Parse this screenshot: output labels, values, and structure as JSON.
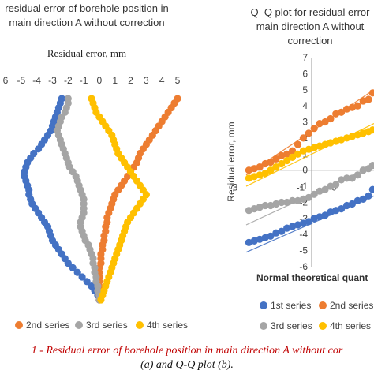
{
  "chart_data": [
    {
      "type": "scatter",
      "title": [
        "residual error of borehole position in",
        "main direction A without correction"
      ],
      "xlabel": "Residual error, mm",
      "ylabel": "",
      "x_ticks": [
        "6",
        "-5",
        "-4",
        "-3",
        "-2",
        "-1",
        "0",
        "1",
        "2",
        "3",
        "4",
        "5"
      ],
      "xlim": [
        -6,
        5
      ],
      "y_inverted": true,
      "grid": false,
      "legend": "bottom",
      "series": [
        {
          "name": "",
          "color": "#4472c4",
          "values": [
            -2.4,
            -2.5,
            -2.6,
            -2.7,
            -2.8,
            -2.9,
            -3.0,
            -3.1,
            -3.3,
            -3.5,
            -3.7,
            -3.9,
            -4.2,
            -4.4,
            -4.6,
            -4.7,
            -4.8,
            -4.8,
            -4.7,
            -4.6,
            -4.5,
            -4.5,
            -4.4,
            -4.3,
            -4.1,
            -3.9,
            -3.7,
            -3.5,
            -3.3,
            -3.2,
            -3.1,
            -3.0,
            -2.8,
            -2.6,
            -2.4,
            -2.2,
            -2.0,
            -1.7,
            -1.4,
            -1.1,
            -0.8,
            -0.5,
            -0.3,
            -0.1,
            0.0
          ]
        },
        {
          "name": "2nd series",
          "color": "#ed7d31",
          "values": [
            5.0,
            4.8,
            4.6,
            4.4,
            4.2,
            4.0,
            3.8,
            3.6,
            3.4,
            3.2,
            3.0,
            2.8,
            2.6,
            2.5,
            2.4,
            2.2,
            2.0,
            1.8,
            1.6,
            1.4,
            1.2,
            1.0,
            0.9,
            0.8,
            0.7,
            0.6,
            0.5,
            0.5,
            0.4,
            0.4,
            0.3,
            0.3,
            0.2,
            0.2,
            0.1,
            0.1,
            0.1,
            0.0,
            0.0,
            0.0,
            0.0,
            0.0,
            0.0,
            0.0,
            0.0
          ]
        },
        {
          "name": "3rd series",
          "color": "#a5a5a5",
          "values": [
            -2.0,
            -2.0,
            -2.1,
            -2.2,
            -2.4,
            -2.5,
            -2.6,
            -2.7,
            -2.6,
            -2.5,
            -2.4,
            -2.3,
            -2.2,
            -2.1,
            -2.0,
            -1.9,
            -1.7,
            -1.5,
            -1.4,
            -1.3,
            -1.2,
            -1.1,
            -1.0,
            -1.0,
            -1.0,
            -1.0,
            -1.1,
            -1.2,
            -1.2,
            -1.1,
            -1.0,
            -0.9,
            -0.7,
            -0.6,
            -0.5,
            -0.4,
            -0.4,
            -0.3,
            -0.3,
            -0.2,
            -0.2,
            -0.1,
            -0.1,
            0.0,
            0.0
          ]
        },
        {
          "name": "4th series",
          "color": "#ffc000",
          "values": [
            -0.5,
            -0.4,
            -0.3,
            -0.2,
            0.0,
            0.2,
            0.4,
            0.6,
            0.8,
            0.9,
            1.0,
            1.1,
            1.2,
            1.4,
            1.6,
            1.8,
            2.0,
            2.2,
            2.4,
            2.6,
            2.8,
            3.0,
            2.8,
            2.6,
            2.4,
            2.2,
            2.0,
            1.8,
            1.7,
            1.6,
            1.5,
            1.4,
            1.3,
            1.2,
            1.1,
            1.0,
            0.9,
            0.8,
            0.7,
            0.6,
            0.5,
            0.4,
            0.3,
            0.2,
            0.1
          ]
        }
      ]
    },
    {
      "type": "scatter",
      "title": [
        "Q–Q plot for residual error",
        "main direction A without",
        "correction"
      ],
      "xlabel": "Normal theoretical quant",
      "ylabel": "Residual error, mm",
      "y_ticks": [
        "7",
        "6",
        "5",
        "4",
        "3",
        "2",
        "1",
        "0",
        "-1",
        "-2",
        "-3",
        "-4",
        "-5",
        "-6"
      ],
      "x_tick_labels": [
        "3",
        "-1",
        "0"
      ],
      "ylim": [
        -6,
        7
      ],
      "xlim": [
        -3,
        1.7
      ],
      "grid": false,
      "legend": "bottom",
      "series": [
        {
          "name": "1st series",
          "color": "#4472c4",
          "x": [
            -2.9,
            -2.7,
            -2.5,
            -2.3,
            -2.1,
            -1.9,
            -1.7,
            -1.5,
            -1.3,
            -1.1,
            -0.9,
            -0.7,
            -0.5,
            -0.3,
            -0.1,
            0.1,
            0.3,
            0.5,
            0.7,
            0.9,
            1.1,
            1.3,
            1.5,
            1.65
          ],
          "y": [
            -4.5,
            -4.4,
            -4.3,
            -4.2,
            -4.1,
            -3.9,
            -3.8,
            -3.6,
            -3.5,
            -3.4,
            -3.3,
            -3.2,
            -3.0,
            -2.9,
            -2.8,
            -2.6,
            -2.5,
            -2.4,
            -2.2,
            -2.1,
            -1.9,
            -1.8,
            -1.6,
            -1.2
          ]
        },
        {
          "name": "2nd series",
          "color": "#ed7d31",
          "x": [
            -2.9,
            -2.7,
            -2.5,
            -2.3,
            -2.1,
            -1.9,
            -1.7,
            -1.5,
            -1.3,
            -1.1,
            -0.9,
            -0.7,
            -0.5,
            -0.3,
            -0.1,
            0.1,
            0.3,
            0.5,
            0.7,
            0.9,
            1.1,
            1.3,
            1.5,
            1.65
          ],
          "y": [
            0.0,
            0.1,
            0.2,
            0.4,
            0.5,
            0.7,
            0.9,
            1.0,
            1.2,
            1.6,
            2.0,
            2.3,
            2.6,
            2.9,
            3.0,
            3.2,
            3.5,
            3.6,
            3.8,
            3.9,
            4.0,
            4.3,
            4.4,
            4.8
          ]
        },
        {
          "name": "3rd series",
          "color": "#a5a5a5",
          "x": [
            -2.9,
            -2.7,
            -2.5,
            -2.3,
            -2.1,
            -1.9,
            -1.7,
            -1.5,
            -1.3,
            -1.1,
            -0.9,
            -0.7,
            -0.5,
            -0.3,
            -0.1,
            0.1,
            0.3,
            0.5,
            0.7,
            0.9,
            1.1,
            1.3,
            1.5,
            1.65
          ],
          "y": [
            -2.5,
            -2.4,
            -2.3,
            -2.2,
            -2.2,
            -2.1,
            -2.0,
            -2.0,
            -1.9,
            -1.9,
            -1.8,
            -1.7,
            -1.5,
            -1.3,
            -1.2,
            -1.0,
            -0.9,
            -0.6,
            -0.5,
            -0.5,
            -0.3,
            0.0,
            0.1,
            0.3
          ]
        },
        {
          "name": "4th series",
          "color": "#ffc000",
          "x": [
            -2.9,
            -2.7,
            -2.5,
            -2.3,
            -2.1,
            -1.9,
            -1.7,
            -1.5,
            -1.3,
            -1.1,
            -0.9,
            -0.7,
            -0.5,
            -0.3,
            -0.1,
            0.1,
            0.3,
            0.5,
            0.7,
            0.9,
            1.1,
            1.3,
            1.5,
            1.65
          ],
          "y": [
            -0.5,
            -0.4,
            -0.3,
            -0.2,
            0.0,
            0.2,
            0.4,
            0.6,
            0.8,
            1.0,
            1.2,
            1.3,
            1.4,
            1.5,
            1.6,
            1.7,
            1.8,
            1.9,
            2.0,
            2.1,
            2.2,
            2.3,
            2.4,
            2.5
          ]
        }
      ],
      "trendlines": [
        {
          "series": "1st series",
          "color": "#4472c4",
          "x": [
            -3.0,
            1.7
          ],
          "y": [
            -5.1,
            -1.6
          ]
        },
        {
          "series": "2nd series",
          "color": "#ed7d31",
          "x": [
            -3.0,
            1.7
          ],
          "y": [
            -0.3,
            5.0
          ]
        },
        {
          "series": "3rd series",
          "color": "#a5a5a5",
          "x": [
            -3.0,
            1.7
          ],
          "y": [
            -3.4,
            0.3
          ]
        },
        {
          "series": "4th series",
          "color": "#ffc000",
          "x": [
            -3.0,
            1.7
          ],
          "y": [
            -1.0,
            2.9
          ]
        }
      ]
    }
  ],
  "caption": {
    "line1": "1 - Residual error of borehole position in main direction A without cor",
    "line2": "(a) and Q-Q plot (b)."
  }
}
